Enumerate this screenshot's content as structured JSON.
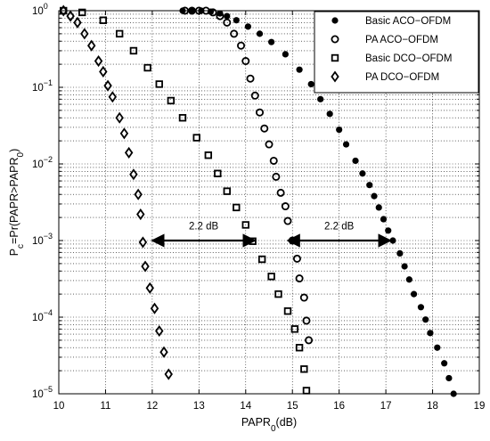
{
  "chart_data": {
    "type": "scatter",
    "xlabel_main": "PAPR",
    "xlabel_sub": "0",
    "xlabel_tail": "(dB)",
    "ylabel_main": "P",
    "ylabel_sub1": "c",
    "ylabel_mid": "=Pr(PAPR>PAPR",
    "ylabel_sub2": "0",
    "ylabel_tail": ")",
    "xlim": [
      10,
      19
    ],
    "ylim": [
      1e-05,
      1
    ],
    "y_scale": "log",
    "grid": true,
    "legend_position": "top-right",
    "x_ticks": [
      "10",
      "11",
      "12",
      "13",
      "14",
      "15",
      "16",
      "17",
      "18",
      "19"
    ],
    "y_ticks": [
      {
        "base": "10",
        "exp": "0",
        "value": 1
      },
      {
        "base": "10",
        "exp": "−1",
        "value": 0.1
      },
      {
        "base": "10",
        "exp": "−2",
        "value": 0.01
      },
      {
        "base": "10",
        "exp": "−3",
        "value": 0.001
      },
      {
        "base": "10",
        "exp": "−4",
        "value": 0.0001
      },
      {
        "base": "10",
        "exp": "−5",
        "value": 1e-05
      }
    ],
    "series": [
      {
        "name": "Basic ACO−OFDM",
        "marker": "filled-circle",
        "x": [
          12.65,
          12.85,
          13.05,
          13.25,
          13.45,
          13.6,
          13.8,
          14.05,
          14.3,
          14.55,
          14.85,
          15.15,
          15.4,
          15.6,
          15.8,
          16.0,
          16.15,
          16.35,
          16.5,
          16.65,
          16.75,
          16.85,
          16.95,
          17.05,
          17.15,
          17.3,
          17.4,
          17.5,
          17.6,
          17.75,
          17.85,
          17.95,
          18.1,
          18.25,
          18.35,
          18.45
        ],
        "y": [
          1,
          1,
          1,
          0.97,
          0.92,
          0.85,
          0.75,
          0.62,
          0.5,
          0.39,
          0.27,
          0.17,
          0.11,
          0.07,
          0.045,
          0.028,
          0.018,
          0.011,
          0.0075,
          0.0053,
          0.0038,
          0.0027,
          0.0019,
          0.00135,
          0.001,
          0.00068,
          0.00046,
          0.00031,
          0.0002,
          0.000135,
          9.3e-05,
          6.2e-05,
          4e-05,
          2.5e-05,
          1.6e-05,
          1e-05
        ]
      },
      {
        "name": "PA ACO−OFDM",
        "marker": "open-circle",
        "x": [
          12.7,
          12.85,
          13.0,
          13.15,
          13.3,
          13.45,
          13.6,
          13.75,
          13.9,
          14.0,
          14.1,
          14.2,
          14.3,
          14.4,
          14.5,
          14.6,
          14.65,
          14.75,
          14.85,
          14.9,
          15.0,
          15.1,
          15.15,
          15.25,
          15.3,
          15.35
        ],
        "y": [
          1,
          1,
          1,
          1,
          0.95,
          0.85,
          0.7,
          0.5,
          0.35,
          0.22,
          0.13,
          0.078,
          0.047,
          0.029,
          0.018,
          0.011,
          0.0068,
          0.0042,
          0.0028,
          0.0018,
          0.001,
          0.00058,
          0.00032,
          0.00018,
          9e-05,
          5e-05
        ]
      },
      {
        "name": "Basic DCO−OFDM",
        "marker": "square",
        "x": [
          10.1,
          10.5,
          10.95,
          11.3,
          11.6,
          11.9,
          12.15,
          12.4,
          12.65,
          12.95,
          13.2,
          13.4,
          13.6,
          13.8,
          14.0,
          14.15,
          14.35,
          14.55,
          14.7,
          14.9,
          15.05,
          15.15,
          15.25,
          15.3
        ],
        "y": [
          1,
          0.95,
          0.75,
          0.5,
          0.3,
          0.18,
          0.11,
          0.067,
          0.04,
          0.022,
          0.013,
          0.0075,
          0.0044,
          0.0027,
          0.0016,
          0.00098,
          0.00057,
          0.00034,
          0.0002,
          0.00012,
          7e-05,
          4e-05,
          2.1e-05,
          1.1e-05
        ]
      },
      {
        "name": "PA DCO−OFDM",
        "marker": "diamond",
        "x": [
          10.1,
          10.25,
          10.4,
          10.55,
          10.7,
          10.85,
          10.95,
          11.05,
          11.15,
          11.3,
          11.4,
          11.5,
          11.6,
          11.7,
          11.75,
          11.8,
          11.85,
          11.95,
          12.05,
          12.15,
          12.25,
          12.35
        ],
        "y": [
          1,
          0.85,
          0.7,
          0.5,
          0.35,
          0.22,
          0.16,
          0.105,
          0.075,
          0.04,
          0.025,
          0.014,
          0.0073,
          0.004,
          0.0022,
          0.00095,
          0.00046,
          0.00024,
          0.00013,
          6.6e-05,
          3.5e-05,
          1.8e-05
        ]
      }
    ],
    "annotations": [
      {
        "text": "2.2 dB",
        "x1": 12.0,
        "x2": 14.2,
        "y": 0.001,
        "label_x": 13.1,
        "label_y": 0.0014
      },
      {
        "text": "2.2 dB",
        "x1": 14.9,
        "x2": 17.1,
        "y": 0.001,
        "label_x": 16.0,
        "label_y": 0.0014
      }
    ]
  }
}
